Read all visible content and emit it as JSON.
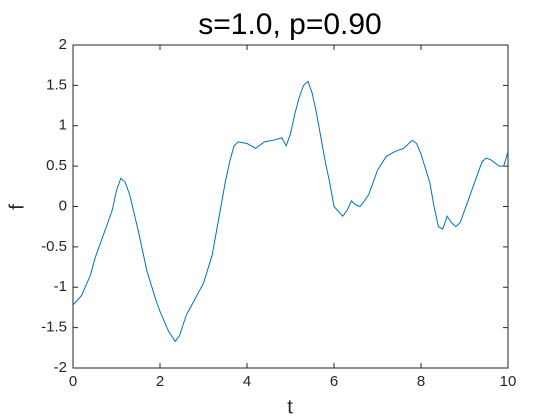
{
  "chart_data": {
    "type": "line",
    "title": "s=1.0, p=0.90",
    "xlabel": "t",
    "ylabel": "f",
    "x": [
      0,
      0.2,
      0.4,
      0.5,
      0.7,
      0.9,
      1.0,
      1.1,
      1.2,
      1.3,
      1.5,
      1.7,
      1.9,
      2.0,
      2.2,
      2.35,
      2.45,
      2.6,
      2.8,
      3.0,
      3.2,
      3.3,
      3.4,
      3.5,
      3.6,
      3.7,
      3.8,
      4.0,
      4.2,
      4.4,
      4.6,
      4.8,
      4.9,
      5.0,
      5.1,
      5.2,
      5.3,
      5.4,
      5.5,
      5.6,
      5.7,
      5.8,
      5.9,
      6.0,
      6.2,
      6.3,
      6.4,
      6.5,
      6.6,
      6.7,
      6.8,
      7.0,
      7.2,
      7.4,
      7.6,
      7.8,
      7.9,
      8.0,
      8.2,
      8.3,
      8.4,
      8.5,
      8.6,
      8.7,
      8.8,
      8.9,
      9.0,
      9.2,
      9.4,
      9.5,
      9.6,
      9.8,
      9.9,
      10.0
    ],
    "series": [
      {
        "color": "#0072bd",
        "values": [
          -1.22,
          -1.1,
          -0.85,
          -0.65,
          -0.35,
          -0.05,
          0.2,
          0.35,
          0.3,
          0.15,
          -0.3,
          -0.8,
          -1.15,
          -1.3,
          -1.55,
          -1.67,
          -1.6,
          -1.35,
          -1.15,
          -0.95,
          -0.6,
          -0.3,
          0.0,
          0.3,
          0.55,
          0.75,
          0.8,
          0.78,
          0.72,
          0.8,
          0.82,
          0.85,
          0.75,
          0.9,
          1.15,
          1.35,
          1.5,
          1.55,
          1.4,
          1.15,
          0.85,
          0.55,
          0.3,
          0.0,
          -0.12,
          -0.05,
          0.07,
          0.02,
          0.0,
          0.07,
          0.15,
          0.45,
          0.62,
          0.68,
          0.72,
          0.82,
          0.78,
          0.65,
          0.3,
          0.0,
          -0.25,
          -0.28,
          -0.12,
          -0.2,
          -0.25,
          -0.2,
          -0.05,
          0.25,
          0.55,
          0.6,
          0.58,
          0.5,
          0.5,
          0.68
        ]
      }
    ],
    "xlim": [
      0,
      10
    ],
    "xticks": [
      0,
      2,
      4,
      6,
      8,
      10
    ],
    "ylim": [
      -2,
      2
    ],
    "yticks": [
      -2,
      -1.5,
      -1,
      -0.5,
      0,
      0.5,
      1,
      1.5,
      2
    ]
  }
}
